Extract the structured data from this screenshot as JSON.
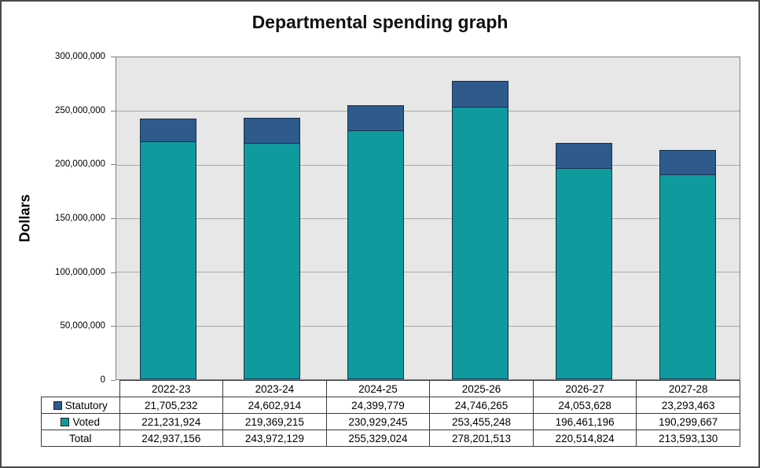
{
  "chart_data": {
    "type": "bar",
    "stacked": true,
    "title": "Departmental spending graph",
    "xlabel": "",
    "ylabel": "Dollars",
    "categories": [
      "2022-23",
      "2023-24",
      "2024-25",
      "2025-26",
      "2026-27",
      "2027-28"
    ],
    "series": [
      {
        "name": "Statutory",
        "color": "#2E5A8C",
        "values": [
          21705232,
          24602914,
          24399779,
          24746265,
          24053628,
          23293463
        ]
      },
      {
        "name": "Voted",
        "color": "#0F9A9E",
        "values": [
          221231924,
          219369215,
          230929245,
          253455248,
          196461196,
          190299667
        ]
      }
    ],
    "totals": {
      "name": "Total",
      "values": [
        242937156,
        243972129,
        255329024,
        278201513,
        220514824,
        213593130
      ]
    },
    "ylim": [
      0,
      300000000
    ],
    "yticks": [
      0,
      50000000,
      100000000,
      150000000,
      200000000,
      250000000,
      300000000
    ],
    "ytick_labels": [
      "0",
      "50,000,000",
      "100,000,000",
      "150,000,000",
      "200,000,000",
      "250,000,000",
      "300,000,000"
    ],
    "grid": true,
    "legend_position": "table-left-column",
    "theme": {
      "plot_bg": "#e7e7e7",
      "gridline": "#a9a9a9",
      "plot_border": "#7f7f7f",
      "bar_border": "#15314b",
      "table_border": "#3a3a3a"
    }
  },
  "table": {
    "header": [
      "",
      "2022-23",
      "2023-24",
      "2024-25",
      "2025-26",
      "2026-27",
      "2027-28"
    ],
    "rows": [
      {
        "label": "Statutory",
        "swatch": "#2E5A8C",
        "cells": [
          "21,705,232",
          "24,602,914",
          "24,399,779",
          "24,746,265",
          "24,053,628",
          "23,293,463"
        ]
      },
      {
        "label": "Voted",
        "swatch": "#0F9A9E",
        "cells": [
          "221,231,924",
          "219,369,215",
          "230,929,245",
          "253,455,248",
          "196,461,196",
          "190,299,667"
        ]
      },
      {
        "label": "Total",
        "swatch": null,
        "cells": [
          "242,937,156",
          "243,972,129",
          "255,329,024",
          "278,201,513",
          "220,514,824",
          "213,593,130"
        ]
      }
    ]
  }
}
